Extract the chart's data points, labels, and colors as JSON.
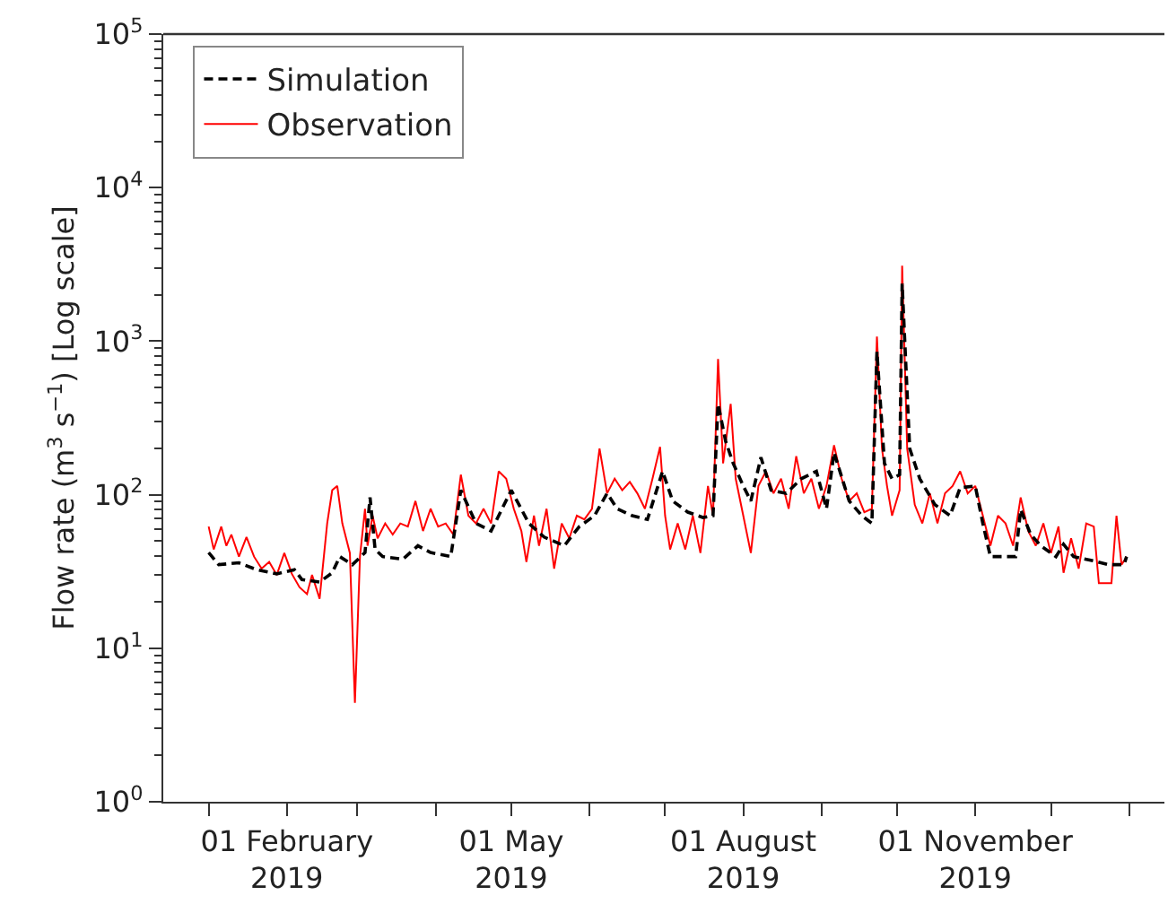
{
  "chart_data": {
    "type": "line",
    "ylabel": "Flow rate (m$^{3}$ s$^{−1}$) [Log scale]",
    "log": "y",
    "legend": "top left",
    "marker": "none",
    "xlim": [
      "2018-12-14",
      "2020-01-15"
    ],
    "xticks": [
      {
        "value": "2019-01-01",
        "label": null
      },
      {
        "value": "2019-02-01",
        "label": "01 February\n2019"
      },
      {
        "value": "2019-03-01",
        "label": null
      },
      {
        "value": "2019-04-01",
        "label": null
      },
      {
        "value": "2019-05-01",
        "label": "01 May\n2019"
      },
      {
        "value": "2019-06-01",
        "label": null
      },
      {
        "value": "2019-07-01",
        "label": null
      },
      {
        "value": "2019-08-01",
        "label": "01 August\n2019"
      },
      {
        "value": "2019-09-01",
        "label": null
      },
      {
        "value": "2019-10-01",
        "label": null
      },
      {
        "value": "2019-11-01",
        "label": "01 November\n2019"
      },
      {
        "value": "2019-12-01",
        "label": null
      },
      {
        "value": "2020-01-01",
        "label": null
      }
    ],
    "ylim": [
      1,
      100000
    ],
    "yticks": [
      {
        "value": 1,
        "label": "10$^{0}$"
      },
      {
        "value": 10,
        "label": "10$^{1}$"
      },
      {
        "value": 100,
        "label": "10$^{2}$"
      },
      {
        "value": 1000,
        "label": "10$^{3}$"
      },
      {
        "value": 10000,
        "label": "10$^{4}$"
      },
      {
        "value": 100000,
        "label": "10$^{5}$"
      }
    ],
    "series": [
      {
        "name": "Simulation",
        "color": "#000000",
        "line_style": "dashed",
        "x": [
          "2019-01-01",
          "2019-01-05",
          "2019-01-13",
          "2019-01-20",
          "2019-01-28",
          "2019-02-04",
          "2019-02-07",
          "2019-02-14",
          "2019-02-19",
          "2019-02-22",
          "2019-02-27",
          "2019-03-04",
          "2019-03-06",
          "2019-03-08",
          "2019-03-11",
          "2019-03-19",
          "2019-03-25",
          "2019-03-30",
          "2019-04-07",
          "2019-04-09",
          "2019-04-11",
          "2019-04-17",
          "2019-04-23",
          "2019-05-01",
          "2019-05-08",
          "2019-05-14",
          "2019-05-22",
          "2019-05-28",
          "2019-06-03",
          "2019-06-08",
          "2019-06-12",
          "2019-06-18",
          "2019-06-24",
          "2019-06-30",
          "2019-07-04",
          "2019-07-10",
          "2019-07-16",
          "2019-07-20",
          "2019-07-22",
          "2019-07-25",
          "2019-07-28",
          "2019-08-01",
          "2019-08-04",
          "2019-08-08",
          "2019-08-12",
          "2019-08-18",
          "2019-08-24",
          "2019-08-30",
          "2019-09-03",
          "2019-09-06",
          "2019-09-12",
          "2019-09-17",
          "2019-09-21",
          "2019-09-23",
          "2019-09-26",
          "2019-09-29",
          "2019-10-02",
          "2019-10-03",
          "2019-10-06",
          "2019-10-10",
          "2019-10-16",
          "2019-10-22",
          "2019-10-26",
          "2019-11-01",
          "2019-11-04",
          "2019-11-07",
          "2019-11-11",
          "2019-11-17",
          "2019-11-19",
          "2019-11-23",
          "2019-11-27",
          "2019-12-03",
          "2019-12-06",
          "2019-12-10",
          "2019-12-18",
          "2019-12-24",
          "2019-12-30",
          "2019-12-31"
        ],
        "values": [
          42,
          35,
          36,
          32.5,
          30.5,
          32.5,
          28,
          27,
          31,
          39.5,
          35,
          42,
          96,
          44,
          39.5,
          38,
          46.5,
          42,
          39.5,
          65,
          107,
          65,
          58,
          107,
          65,
          53,
          46.5,
          62,
          73,
          102,
          81,
          73,
          69,
          142,
          91,
          77,
          71,
          73,
          390,
          223,
          160,
          114,
          91,
          175,
          107,
          102,
          127,
          142,
          81,
          188,
          91,
          73,
          65,
          855,
          160,
          127,
          135,
          2370,
          200,
          127,
          86,
          73,
          111,
          114,
          65,
          39.5,
          39.5,
          39.5,
          80,
          55,
          46.5,
          39.5,
          47.5,
          39.5,
          37,
          35,
          35,
          39.5
        ]
      },
      {
        "name": "Observation",
        "color": "#ff0000",
        "line_style": "solid",
        "x": [
          "2019-01-01",
          "2019-01-03",
          "2019-01-06",
          "2019-01-08",
          "2019-01-10",
          "2019-01-13",
          "2019-01-16",
          "2019-01-19",
          "2019-01-22",
          "2019-01-25",
          "2019-01-28",
          "2019-01-31",
          "2019-02-03",
          "2019-02-06",
          "2019-02-09",
          "2019-02-11",
          "2019-02-14",
          "2019-02-17",
          "2019-02-19",
          "2019-02-21",
          "2019-02-23",
          "2019-02-26",
          "2019-02-28",
          "2019-03-02",
          "2019-03-04",
          "2019-03-05",
          "2019-03-07",
          "2019-03-09",
          "2019-03-12",
          "2019-03-15",
          "2019-03-18",
          "2019-03-21",
          "2019-03-24",
          "2019-03-27",
          "2019-03-30",
          "2019-04-02",
          "2019-04-05",
          "2019-04-08",
          "2019-04-11",
          "2019-04-14",
          "2019-04-17",
          "2019-04-20",
          "2019-04-23",
          "2019-04-26",
          "2019-04-29",
          "2019-05-02",
          "2019-05-05",
          "2019-05-07",
          "2019-05-10",
          "2019-05-12",
          "2019-05-15",
          "2019-05-18",
          "2019-05-21",
          "2019-05-24",
          "2019-05-27",
          "2019-05-30",
          "2019-06-02",
          "2019-06-05",
          "2019-06-08",
          "2019-06-11",
          "2019-06-14",
          "2019-06-17",
          "2019-06-20",
          "2019-06-23",
          "2019-06-26",
          "2019-06-29",
          "2019-07-01",
          "2019-07-03",
          "2019-07-06",
          "2019-07-09",
          "2019-07-12",
          "2019-07-15",
          "2019-07-18",
          "2019-07-20",
          "2019-07-22",
          "2019-07-24",
          "2019-07-27",
          "2019-07-29",
          "2019-08-01",
          "2019-08-04",
          "2019-08-07",
          "2019-08-10",
          "2019-08-13",
          "2019-08-16",
          "2019-08-19",
          "2019-08-22",
          "2019-08-25",
          "2019-08-28",
          "2019-08-31",
          "2019-09-03",
          "2019-09-06",
          "2019-09-09",
          "2019-09-12",
          "2019-09-15",
          "2019-09-18",
          "2019-09-21",
          "2019-09-23",
          "2019-09-25",
          "2019-09-27",
          "2019-09-29",
          "2019-10-02",
          "2019-10-03",
          "2019-10-05",
          "2019-10-08",
          "2019-10-11",
          "2019-10-14",
          "2019-10-17",
          "2019-10-20",
          "2019-10-23",
          "2019-10-26",
          "2019-10-29",
          "2019-11-01",
          "2019-11-04",
          "2019-11-07",
          "2019-11-10",
          "2019-11-13",
          "2019-11-16",
          "2019-11-19",
          "2019-11-22",
          "2019-11-25",
          "2019-11-28",
          "2019-12-01",
          "2019-12-04",
          "2019-12-06",
          "2019-12-09",
          "2019-12-12",
          "2019-12-15",
          "2019-12-18",
          "2019-12-20",
          "2019-12-25",
          "2019-12-27",
          "2019-12-29",
          "2019-12-31"
        ],
        "values": [
          62,
          44,
          62,
          46.5,
          55,
          39.5,
          53,
          39.5,
          33,
          36.5,
          30,
          41.7,
          30.5,
          25,
          22.5,
          30,
          21,
          65,
          107,
          114,
          65,
          41.7,
          4.4,
          39.5,
          81,
          46.5,
          73,
          52,
          65,
          55,
          65,
          62,
          91,
          58,
          81,
          62,
          65,
          55,
          135,
          73,
          65,
          81,
          65,
          142,
          127,
          81,
          58,
          36.5,
          73,
          46.5,
          81,
          33,
          65,
          52,
          73,
          69,
          81,
          200,
          102,
          127,
          107,
          121,
          102,
          81,
          127,
          205,
          73,
          44,
          65,
          44,
          73,
          41.7,
          114,
          73,
          765,
          160,
          390,
          127,
          73,
          41.7,
          114,
          142,
          102,
          127,
          81,
          178,
          102,
          127,
          81,
          114,
          210,
          127,
          91,
          102,
          77,
          81,
          1070,
          200,
          114,
          73,
          107,
          3100,
          200,
          86,
          65,
          102,
          65,
          102,
          114,
          142,
          102,
          114,
          73,
          46.5,
          73,
          65,
          46.5,
          96,
          58,
          46.5,
          65,
          41.7,
          62,
          31,
          52,
          33,
          65,
          62,
          26.5,
          26.5,
          73,
          35,
          39.5
        ]
      }
    ]
  }
}
